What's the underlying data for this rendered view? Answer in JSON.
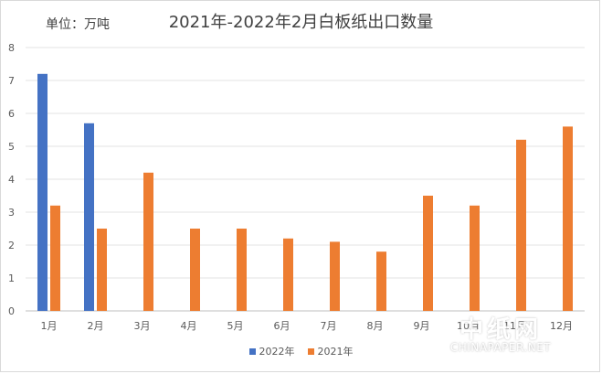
{
  "unit_label": "单位：万吨",
  "watermark": {
    "cn": "中纸网",
    "en": "CHINAPAPER.NET"
  },
  "chart_data": {
    "type": "bar",
    "title": "2021年-2022年2月白板纸出口数量",
    "categories": [
      "1月",
      "2月",
      "3月",
      "4月",
      "5月",
      "6月",
      "7月",
      "8月",
      "9月",
      "10月",
      "11月",
      "12月"
    ],
    "series": [
      {
        "name": "2022年",
        "color": "#4472c4",
        "values": [
          7.2,
          5.7,
          null,
          null,
          null,
          null,
          null,
          null,
          null,
          null,
          null,
          null
        ]
      },
      {
        "name": "2021年",
        "color": "#ed7d31",
        "values": [
          3.2,
          2.5,
          4.2,
          2.5,
          2.5,
          2.2,
          2.1,
          1.8,
          3.5,
          3.2,
          5.2,
          5.6
        ]
      }
    ],
    "ylim": [
      0,
      8
    ],
    "yticks": [
      "0",
      "1",
      "2",
      "3",
      "4",
      "5",
      "6",
      "7",
      "8"
    ],
    "grid": true,
    "legend_position": "bottom"
  }
}
